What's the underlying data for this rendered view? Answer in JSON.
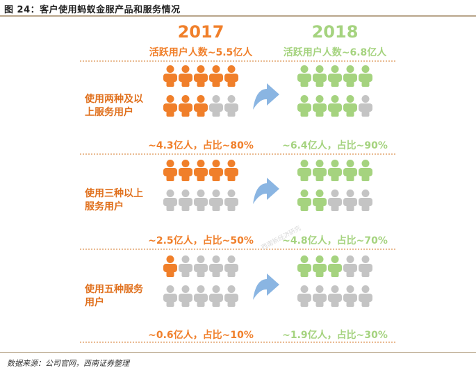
{
  "figure_title": "图 24：客户使用蚂蚁金服产品和服务情况",
  "source_text": "数据来源：公司官网，西南证券整理",
  "watermark": "西南新经济研究",
  "colors": {
    "orange": "#f07f2a",
    "green": "#a5d37f",
    "gray": "#c4c4c4",
    "arrow": "#8ab5e2",
    "divider": "#e2a46d",
    "tier_label": "#e0701d"
  },
  "chart_data": {
    "type": "pictogram",
    "years": [
      "2017",
      "2018"
    ],
    "active_users": [
      "活跃用户人数~5.5亿人",
      "活跃用户人数~6.8亿人"
    ],
    "icons_per_group": 10,
    "tiers": [
      {
        "label_lines": [
          "使用两种及以",
          "上服务用户"
        ],
        "values": [
          {
            "text": "~4.3亿人，占比~80%",
            "share": 0.8
          },
          {
            "text": "~6.4亿人，占比~90%",
            "share": 0.9
          }
        ]
      },
      {
        "label_lines": [
          "使用三种以上",
          "服务用户"
        ],
        "values": [
          {
            "text": "~2.5亿人，占比~50%",
            "share": 0.5
          },
          {
            "text": "~4.8亿人，占比~70%",
            "share": 0.7
          }
        ]
      },
      {
        "label_lines": [
          "使用五种服务",
          "用户"
        ],
        "values": [
          {
            "text": "~0.6亿人，占比~10%",
            "share": 0.1
          },
          {
            "text": "~1.9亿人，占比~30%",
            "share": 0.3
          }
        ]
      }
    ]
  }
}
